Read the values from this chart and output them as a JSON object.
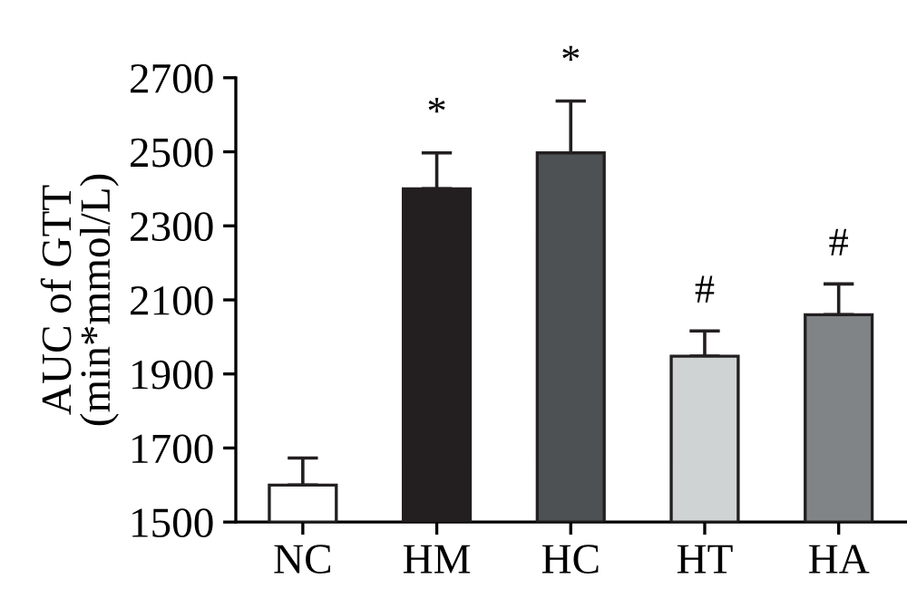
{
  "chart_data": {
    "type": "bar",
    "ylabel": "AUC of GTT\n(min*mmol/L)",
    "categories": [
      "NC",
      "HM",
      "HC",
      "HT",
      "HA"
    ],
    "values": [
      1600,
      2400,
      2497,
      1948,
      2060
    ],
    "errors": [
      [
        1600,
        1673
      ],
      [
        2400,
        2497
      ],
      [
        2497,
        2637
      ],
      [
        1948,
        2016
      ],
      [
        2060,
        2143
      ]
    ],
    "colors": [
      "#ffffff",
      "#231f20",
      "#4d5153",
      "#d0d3d4",
      "#808486"
    ],
    "ylim": [
      1500,
      2700
    ],
    "yticks": [
      1500,
      1700,
      1900,
      2100,
      2300,
      2500,
      2700
    ],
    "grid": false,
    "annotations": [
      {
        "text": "*",
        "x": "HM",
        "y": 2497
      },
      {
        "text": "*",
        "x": "HC",
        "y": 2637
      },
      {
        "text": "#",
        "x": "HT",
        "y": 2016
      },
      {
        "text": "#",
        "x": "HA",
        "y": 2143
      }
    ]
  }
}
